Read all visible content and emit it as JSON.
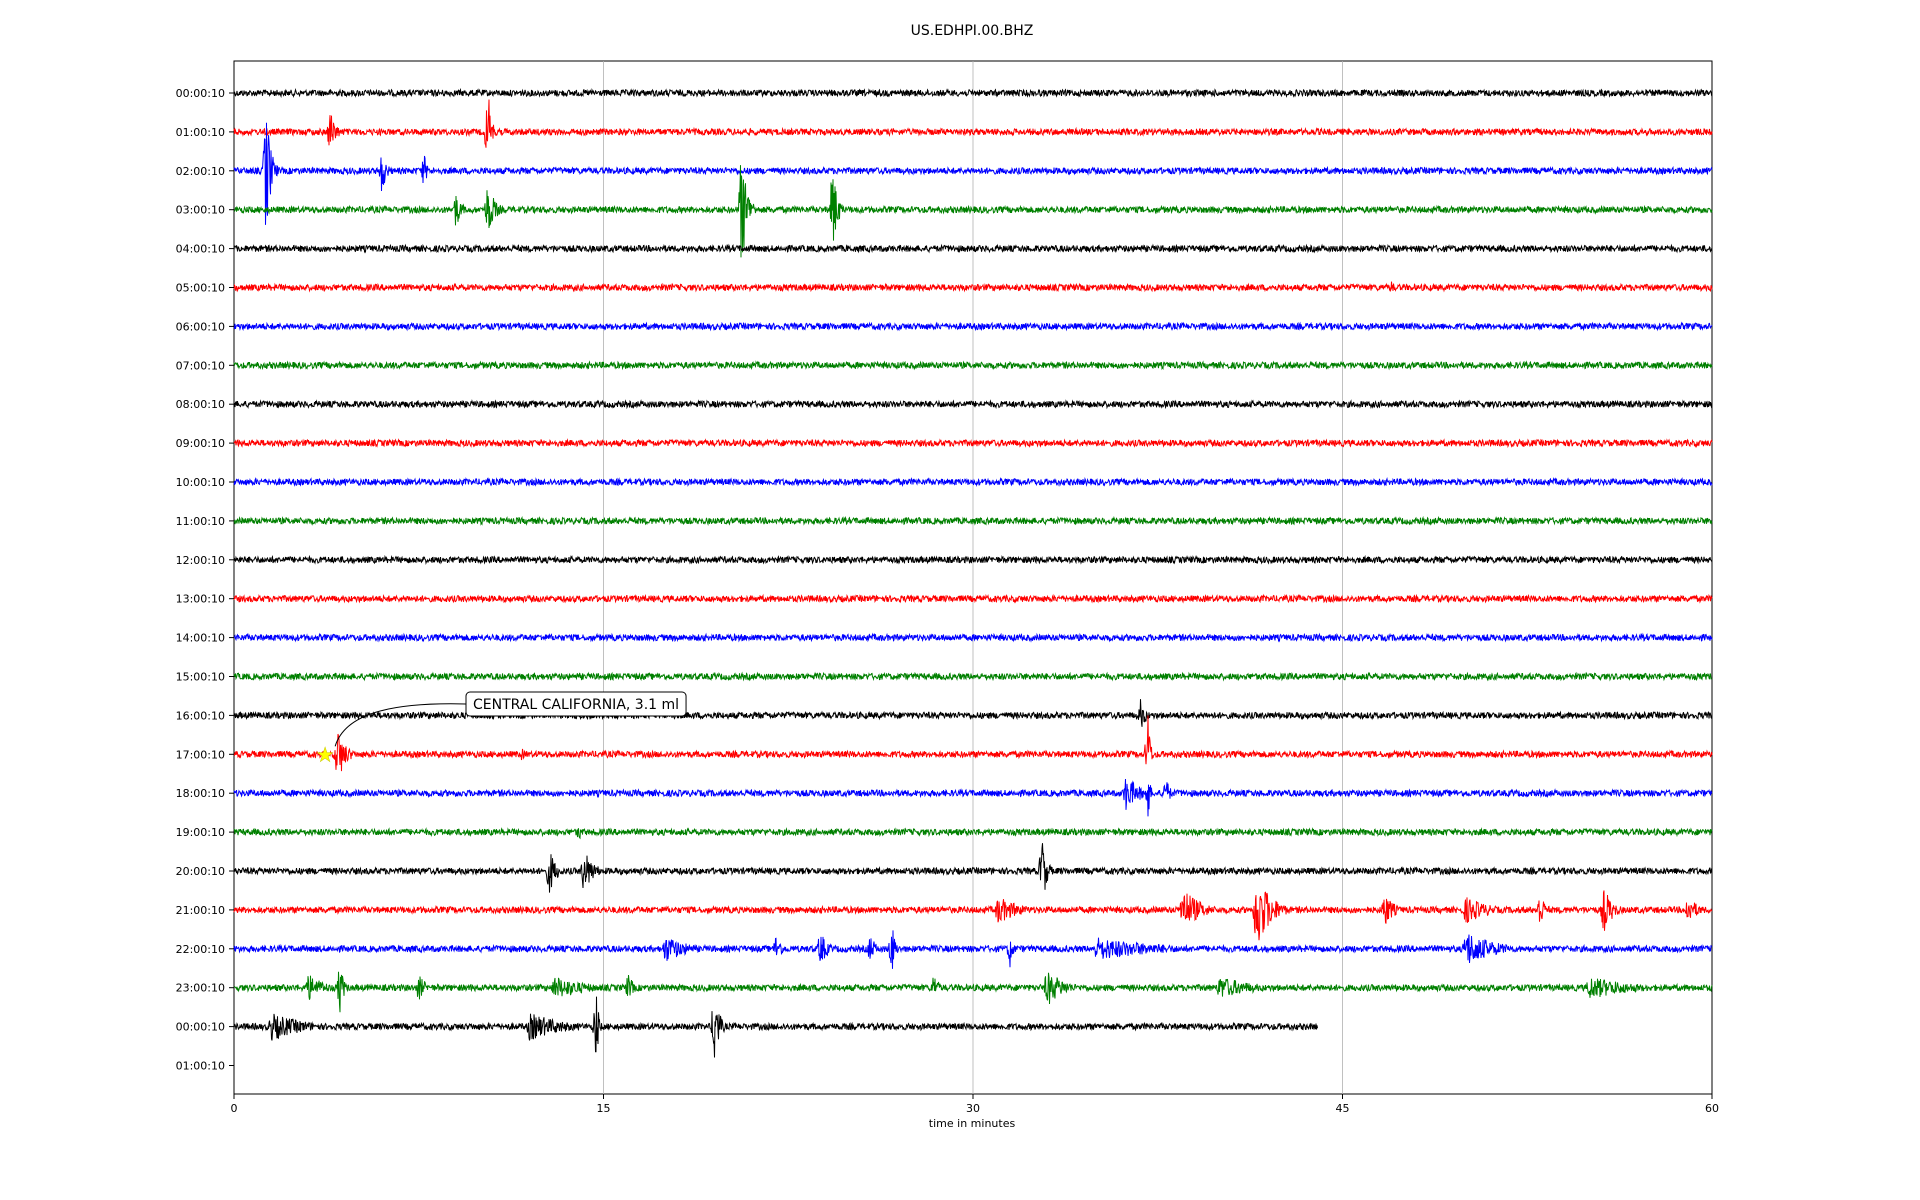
{
  "chart_data": {
    "type": "line",
    "title": "US.EDHPI.00.BHZ",
    "xlabel": "time in minutes",
    "ylabel": "",
    "xlim": [
      0,
      60
    ],
    "x_ticks": [
      0,
      15,
      30,
      45,
      60
    ],
    "x_tick_labels": [
      "0",
      "15",
      "30",
      "45",
      "60"
    ],
    "grid": "vertical",
    "y_tick_labels": [
      "00:00:10",
      "01:00:10",
      "02:00:10",
      "03:00:10",
      "04:00:10",
      "05:00:10",
      "06:00:10",
      "07:00:10",
      "08:00:10",
      "09:00:10",
      "10:00:10",
      "11:00:10",
      "12:00:10",
      "13:00:10",
      "14:00:10",
      "15:00:10",
      "16:00:10",
      "17:00:10",
      "18:00:10",
      "19:00:10",
      "20:00:10",
      "21:00:10",
      "22:00:10",
      "23:00:10",
      "00:00:10",
      "01:00:10"
    ],
    "line_colors": [
      "#000000",
      "#ff0000",
      "#0000ff",
      "#008000"
    ],
    "traces": [
      {
        "label": "00:00:10",
        "end_minute": 60,
        "events": []
      },
      {
        "label": "01:00:10",
        "end_minute": 60,
        "events": [
          {
            "t": 3.9,
            "amp": 0.5,
            "dur": 0.5
          },
          {
            "t": 10.3,
            "amp": 1.0,
            "dur": 0.3
          }
        ]
      },
      {
        "label": "02:00:10",
        "end_minute": 60,
        "events": [
          {
            "t": 1.3,
            "amp": 1.5,
            "dur": 0.4
          },
          {
            "t": 6.0,
            "amp": 0.5,
            "dur": 0.4
          },
          {
            "t": 7.7,
            "amp": 0.4,
            "dur": 0.3
          }
        ]
      },
      {
        "label": "03:00:10",
        "end_minute": 60,
        "events": [
          {
            "t": 9.0,
            "amp": 0.4,
            "dur": 0.5
          },
          {
            "t": 10.3,
            "amp": 0.6,
            "dur": 0.6
          },
          {
            "t": 20.6,
            "amp": 1.3,
            "dur": 0.5
          },
          {
            "t": 24.3,
            "amp": 1.0,
            "dur": 0.4
          }
        ]
      },
      {
        "label": "04:00:10",
        "end_minute": 60,
        "events": []
      },
      {
        "label": "05:00:10",
        "end_minute": 60,
        "events": [
          {
            "t": 47.0,
            "amp": 0.15,
            "dur": 0.3
          }
        ]
      },
      {
        "label": "06:00:10",
        "end_minute": 60,
        "events": []
      },
      {
        "label": "07:00:10",
        "end_minute": 60,
        "events": []
      },
      {
        "label": "08:00:10",
        "end_minute": 60,
        "events": []
      },
      {
        "label": "09:00:10",
        "end_minute": 60,
        "events": []
      },
      {
        "label": "10:00:10",
        "end_minute": 60,
        "events": []
      },
      {
        "label": "11:00:10",
        "end_minute": 60,
        "events": []
      },
      {
        "label": "12:00:10",
        "end_minute": 60,
        "events": []
      },
      {
        "label": "13:00:10",
        "end_minute": 60,
        "events": []
      },
      {
        "label": "14:00:10",
        "end_minute": 60,
        "events": []
      },
      {
        "label": "15:00:10",
        "end_minute": 60,
        "events": []
      },
      {
        "label": "16:00:10",
        "end_minute": 60,
        "events": [
          {
            "t": 36.8,
            "amp": 0.35,
            "dur": 0.5
          }
        ]
      },
      {
        "label": "17:00:10",
        "end_minute": 60,
        "events": [
          {
            "t": 4.2,
            "amp": 0.6,
            "dur": 0.7
          },
          {
            "t": 11.7,
            "amp": 0.15,
            "dur": 0.2
          },
          {
            "t": 37.1,
            "amp": 1.0,
            "dur": 0.2
          }
        ]
      },
      {
        "label": "18:00:10",
        "end_minute": 60,
        "events": [
          {
            "t": 36.2,
            "amp": 0.4,
            "dur": 1.2
          },
          {
            "t": 37.1,
            "amp": 0.6,
            "dur": 0.2
          },
          {
            "t": 37.8,
            "amp": 0.4,
            "dur": 0.4
          }
        ]
      },
      {
        "label": "19:00:10",
        "end_minute": 60,
        "events": [
          {
            "t": 14.0,
            "amp": 0.2,
            "dur": 0.3
          }
        ]
      },
      {
        "label": "20:00:10",
        "end_minute": 60,
        "events": [
          {
            "t": 12.8,
            "amp": 0.5,
            "dur": 0.6
          },
          {
            "t": 14.2,
            "amp": 0.5,
            "dur": 0.8
          },
          {
            "t": 32.8,
            "amp": 0.8,
            "dur": 0.4
          }
        ]
      },
      {
        "label": "21:00:10",
        "end_minute": 60,
        "events": [
          {
            "t": 31.0,
            "amp": 0.3,
            "dur": 2.0
          },
          {
            "t": 38.5,
            "amp": 0.5,
            "dur": 1.5
          },
          {
            "t": 41.5,
            "amp": 0.9,
            "dur": 1.2
          },
          {
            "t": 46.7,
            "amp": 0.4,
            "dur": 0.8
          },
          {
            "t": 50.0,
            "amp": 0.3,
            "dur": 2.0
          },
          {
            "t": 53.0,
            "amp": 0.4,
            "dur": 0.5
          },
          {
            "t": 55.6,
            "amp": 0.5,
            "dur": 0.8
          },
          {
            "t": 59.0,
            "amp": 0.3,
            "dur": 1.0
          }
        ]
      },
      {
        "label": "22:00:10",
        "end_minute": 60,
        "events": [
          {
            "t": 17.5,
            "amp": 0.3,
            "dur": 2.0
          },
          {
            "t": 22.0,
            "amp": 0.3,
            "dur": 0.6
          },
          {
            "t": 23.8,
            "amp": 0.4,
            "dur": 0.6
          },
          {
            "t": 25.8,
            "amp": 0.3,
            "dur": 0.6
          },
          {
            "t": 26.7,
            "amp": 0.6,
            "dur": 0.3
          },
          {
            "t": 31.5,
            "amp": 0.4,
            "dur": 0.3
          },
          {
            "t": 35.0,
            "amp": 0.25,
            "dur": 6.0
          },
          {
            "t": 50.0,
            "amp": 0.4,
            "dur": 2.5
          }
        ]
      },
      {
        "label": "23:00:10",
        "end_minute": 60,
        "events": [
          {
            "t": 3.0,
            "amp": 0.3,
            "dur": 1.5
          },
          {
            "t": 4.3,
            "amp": 0.6,
            "dur": 0.3
          },
          {
            "t": 7.5,
            "amp": 0.3,
            "dur": 0.6
          },
          {
            "t": 13.0,
            "amp": 0.25,
            "dur": 3.0
          },
          {
            "t": 16.0,
            "amp": 0.3,
            "dur": 0.5
          },
          {
            "t": 28.4,
            "amp": 0.3,
            "dur": 0.5
          },
          {
            "t": 33.0,
            "amp": 0.4,
            "dur": 1.5
          },
          {
            "t": 40.0,
            "amp": 0.25,
            "dur": 3.0
          },
          {
            "t": 55.0,
            "amp": 0.25,
            "dur": 4.0
          }
        ]
      },
      {
        "label": "00:00:10",
        "end_minute": 44,
        "events": [
          {
            "t": 1.5,
            "amp": 0.3,
            "dur": 3.0
          },
          {
            "t": 12.0,
            "amp": 0.3,
            "dur": 3.0
          },
          {
            "t": 14.7,
            "amp": 0.9,
            "dur": 0.2
          },
          {
            "t": 19.5,
            "amp": 0.9,
            "dur": 0.4
          }
        ]
      },
      {
        "label": "01:00:10",
        "end_minute": 0,
        "events": []
      }
    ],
    "annotation": {
      "text": "CENTRAL CALIFORNIA, 3.1 ml",
      "trace_index": 17,
      "minute": 3.7,
      "marker_color": "#ffff00"
    }
  }
}
